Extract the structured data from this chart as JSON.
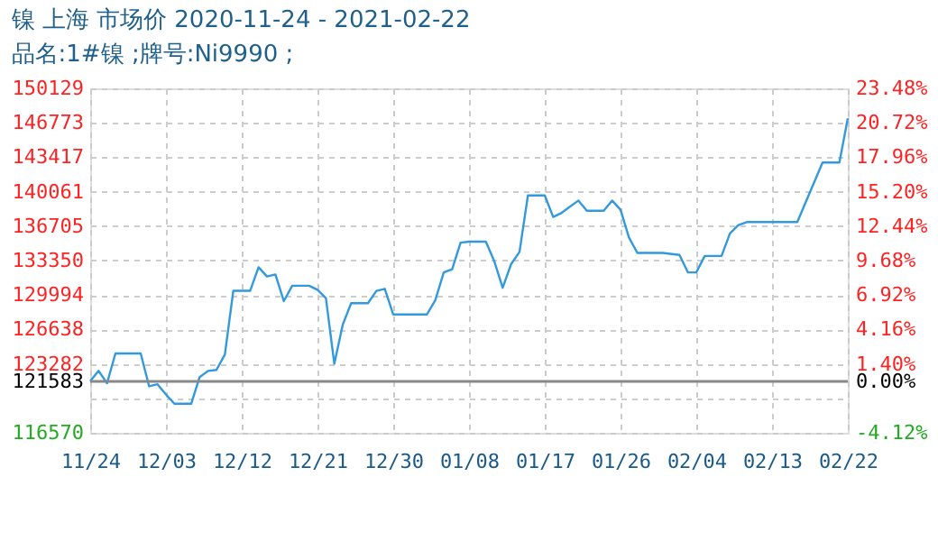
{
  "chart_data": {
    "type": "line",
    "title": "镍 上海 市场价 2020-11-24 - 2021-02-22",
    "subtitle": "品名:1#镍 ;牌号:Ni9990 ;",
    "x": [
      "2020-11-24",
      "2020-11-25",
      "2020-11-26",
      "2020-11-27",
      "2020-11-30",
      "2020-12-01",
      "2020-12-02",
      "2020-12-03",
      "2020-12-04",
      "2020-12-06",
      "2020-12-07",
      "2020-12-08",
      "2020-12-09",
      "2020-12-10",
      "2020-12-11",
      "2020-12-13",
      "2020-12-14",
      "2020-12-15",
      "2020-12-16",
      "2020-12-17",
      "2020-12-18",
      "2020-12-20",
      "2020-12-21",
      "2020-12-22",
      "2020-12-23",
      "2020-12-24",
      "2020-12-25",
      "2020-12-27",
      "2020-12-28",
      "2020-12-29",
      "2020-12-30",
      "2021-01-03",
      "2021-01-04",
      "2021-01-05",
      "2021-01-06",
      "2021-01-07",
      "2021-01-08",
      "2021-01-10",
      "2021-01-11",
      "2021-01-12",
      "2021-01-13",
      "2021-01-14",
      "2021-01-15",
      "2021-01-17",
      "2021-01-18",
      "2021-01-19",
      "2021-01-21",
      "2021-01-22",
      "2021-01-24",
      "2021-01-25",
      "2021-01-26",
      "2021-01-27",
      "2021-01-28",
      "2021-01-31",
      "2021-02-02",
      "2021-02-03",
      "2021-02-04",
      "2021-02-05",
      "2021-02-07",
      "2021-02-08",
      "2021-02-09",
      "2021-02-10",
      "2021-02-16",
      "2021-02-19",
      "2021-02-21",
      "2021-02-22"
    ],
    "series": [
      {
        "color": "#3399dd",
        "values": [
          121600,
          122600,
          121400,
          124300,
          124300,
          121100,
          121300,
          120300,
          119400,
          119400,
          122000,
          122600,
          122700,
          124200,
          130400,
          130400,
          132700,
          131800,
          132000,
          129400,
          130900,
          130900,
          130500,
          129700,
          123300,
          127100,
          129200,
          129200,
          130400,
          130600,
          128100,
          128100,
          129500,
          132200,
          132500,
          135100,
          135200,
          135200,
          133300,
          130700,
          133000,
          134200,
          139700,
          139700,
          137600,
          138000,
          139200,
          138200,
          138200,
          139200,
          138300,
          135600,
          134100,
          134100,
          133900,
          132200,
          132200,
          133800,
          133800,
          136000,
          136800,
          137100,
          137100,
          142900,
          142900,
          147200
        ]
      }
    ],
    "xlim": [
      "2020-11-24",
      "2021-02-22"
    ],
    "xticks": [
      {
        "value": "2020-11-24",
        "label": "11/24"
      },
      {
        "value": "2020-12-03",
        "label": "12/03"
      },
      {
        "value": "2020-12-12",
        "label": "12/12"
      },
      {
        "value": "2020-12-21",
        "label": "12/21"
      },
      {
        "value": "2020-12-30",
        "label": "12/30"
      },
      {
        "value": "2021-01-08",
        "label": "01/08"
      },
      {
        "value": "2021-01-17",
        "label": "01/17"
      },
      {
        "value": "2021-01-26",
        "label": "01/26"
      },
      {
        "value": "2021-02-04",
        "label": "02/04"
      },
      {
        "value": "2021-02-13",
        "label": "02/13"
      },
      {
        "value": "2021-02-22",
        "label": "02/22"
      }
    ],
    "ylim": [
      116570,
      150129
    ],
    "yticks": [
      150129,
      146773,
      143417,
      140061,
      136705,
      133350,
      129994,
      126638,
      123282,
      121583,
      {
        "value": 119926,
        "label": null
      },
      116570
    ],
    "y2lim": [
      -4.12,
      23.48
    ],
    "y2ticks": [
      {
        "value": 23.48,
        "label": "23.48%"
      },
      {
        "value": 20.72,
        "label": "20.72%"
      },
      {
        "value": 17.96,
        "label": "17.96%"
      },
      {
        "value": 15.2,
        "label": "15.20%"
      },
      {
        "value": 12.44,
        "label": "12.44%"
      },
      {
        "value": 9.68,
        "label": "9.68%"
      },
      {
        "value": 6.92,
        "label": "6.92%"
      },
      {
        "value": 4.16,
        "label": "4.16%"
      },
      {
        "value": 1.4,
        "label": "1.40%"
      },
      {
        "value": 0,
        "label": "0.00%"
      },
      {
        "value": -4.12,
        "label": "-4.12%"
      }
    ],
    "ref_lines": [
      {
        "axis": "y",
        "value": 121583,
        "color": "#888888"
      }
    ],
    "grid": true,
    "marker": "none",
    "line_style": "solid"
  }
}
